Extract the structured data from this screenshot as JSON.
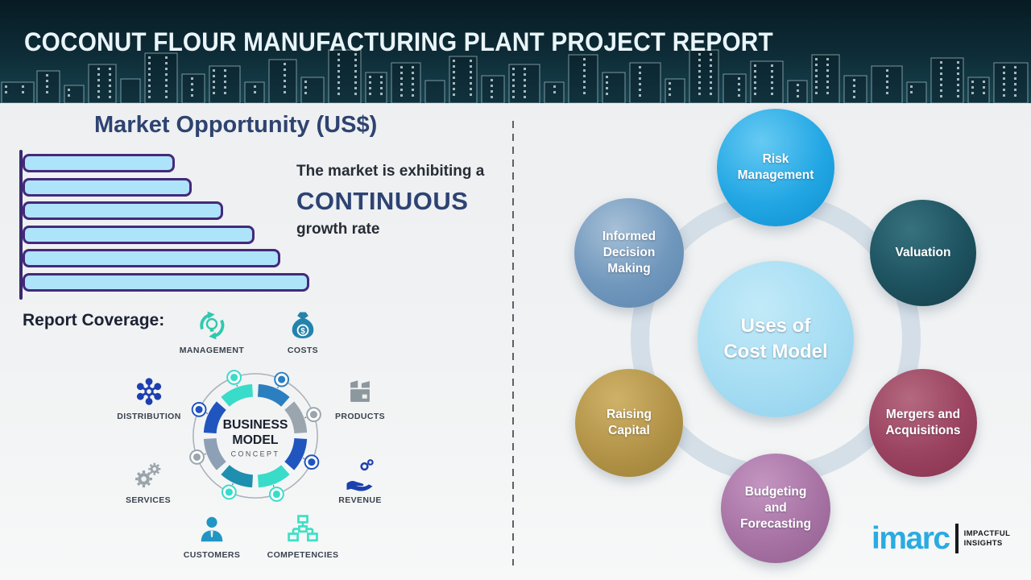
{
  "header": {
    "title": "COCONUT FLOUR MANUFACTURING PLANT PROJECT REPORT"
  },
  "market": {
    "heading": "Market Opportunity (US$)",
    "statement_line1": "The market is exhibiting a",
    "statement_highlight": "CONTINUOUS",
    "statement_line3": "growth rate"
  },
  "chart_data": {
    "type": "bar",
    "orientation": "horizontal",
    "title": "Market Opportunity (US$)",
    "xlabel": "",
    "ylabel": "",
    "axis_labels_shown": false,
    "bar_count": 6,
    "values_percent_of_max": [
      53,
      59,
      70,
      81,
      90,
      100
    ],
    "bar_fill_color": "#aee4f9",
    "bar_border_color": "#44297c",
    "trend": "increasing top to bottom"
  },
  "report_coverage": {
    "heading": "Report Coverage:",
    "model": {
      "title_line1": "BUSINESS",
      "title_line2": "MODEL",
      "subtitle": "CONCEPT"
    },
    "items": [
      {
        "label": "MANAGEMENT",
        "icon": "management-cycle-bulb-icon",
        "color": "#2fc9ae"
      },
      {
        "label": "COSTS",
        "icon": "money-bag-icon",
        "color": "#2383ad"
      },
      {
        "label": "DISTRIBUTION",
        "icon": "network-nodes-icon",
        "color": "#1d3fae"
      },
      {
        "label": "PRODUCTS",
        "icon": "package-box-icon",
        "color": "#8d979e"
      },
      {
        "label": "SERVICES",
        "icon": "gears-icon",
        "color": "#9aa3ab"
      },
      {
        "label": "REVENUE",
        "icon": "hand-coins-icon",
        "color": "#1d3fae"
      },
      {
        "label": "CUSTOMERS",
        "icon": "person-icon",
        "color": "#2196c4"
      },
      {
        "label": "COMPETENCIES",
        "icon": "org-chart-icon",
        "color": "#3fe0c5"
      }
    ]
  },
  "cost_model": {
    "center": {
      "line1": "Uses of",
      "line2": "Cost Model",
      "color": "#a6ddf3"
    },
    "bubbles": [
      {
        "label": "Risk Management",
        "color": "#23a7e4"
      },
      {
        "label": "Informed Decision Making",
        "color": "#7097bc"
      },
      {
        "label": "Valuation",
        "color": "#1d525f"
      },
      {
        "label": "Raising Capital",
        "color": "#b29347"
      },
      {
        "label": "Mergers and Acquisitions",
        "color": "#9a4260"
      },
      {
        "label": "Budgeting and Forecasting",
        "color": "#a773a4"
      }
    ]
  },
  "logo": {
    "brand": "imarc",
    "tagline_line1": "IMPACTFUL",
    "tagline_line2": "INSIGHTS",
    "brand_color": "#29abe2"
  }
}
